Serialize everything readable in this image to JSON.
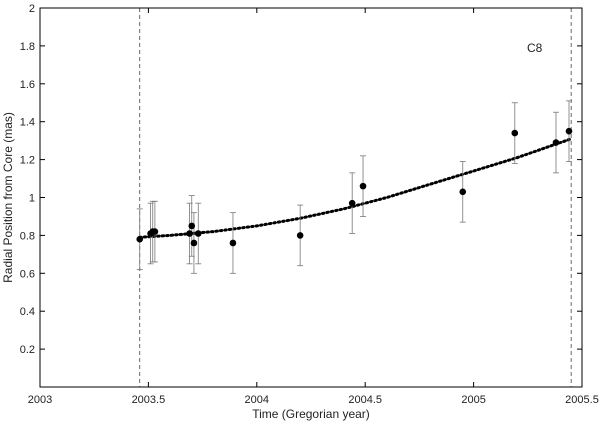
{
  "chart_data": {
    "type": "scatter",
    "title": "",
    "xlabel": "Time (Gregorian year)",
    "ylabel": "Radial Position from Core (mas)",
    "annotation": "C8",
    "xlim": [
      2003,
      2005.5
    ],
    "ylim": [
      0,
      2
    ],
    "x_ticks": [
      2003,
      2003.5,
      2004,
      2004.5,
      2005,
      2005.5
    ],
    "x_tick_labels": [
      "2003",
      "2003.5",
      "2004",
      "2004.5",
      "2005",
      "2005.5"
    ],
    "y_ticks": [
      0.2,
      0.4,
      0.6,
      0.8,
      1,
      1.2,
      1.4,
      1.6,
      1.8,
      2
    ],
    "y_tick_labels": [
      "0.2",
      "0.4",
      "0.6",
      "0.8",
      "1",
      "1.2",
      "1.4",
      "1.6",
      "1.8",
      "2"
    ],
    "grid": false,
    "vertical_lines": [
      2003.46,
      2005.45
    ],
    "points": [
      {
        "x": 2003.46,
        "y": 0.78,
        "err": 0.16
      },
      {
        "x": 2003.51,
        "y": 0.81,
        "err": 0.16
      },
      {
        "x": 2003.52,
        "y": 0.82,
        "err": 0.16
      },
      {
        "x": 2003.53,
        "y": 0.82,
        "err": 0.16
      },
      {
        "x": 2003.69,
        "y": 0.81,
        "err": 0.16
      },
      {
        "x": 2003.7,
        "y": 0.85,
        "err": 0.16
      },
      {
        "x": 2003.71,
        "y": 0.76,
        "err": 0.16
      },
      {
        "x": 2003.73,
        "y": 0.81,
        "err": 0.16
      },
      {
        "x": 2003.89,
        "y": 0.76,
        "err": 0.16
      },
      {
        "x": 2004.2,
        "y": 0.8,
        "err": 0.16
      },
      {
        "x": 2004.44,
        "y": 0.97,
        "err": 0.16
      },
      {
        "x": 2004.49,
        "y": 1.06,
        "err": 0.16
      },
      {
        "x": 2004.95,
        "y": 1.03,
        "err": 0.16
      },
      {
        "x": 2005.19,
        "y": 1.34,
        "err": 0.16
      },
      {
        "x": 2005.38,
        "y": 1.29,
        "err": 0.16
      },
      {
        "x": 2005.44,
        "y": 1.35,
        "err": 0.16
      }
    ],
    "fit_curve": {
      "style": "dotted",
      "x": [
        2003.46,
        2003.6,
        2003.8,
        2004.0,
        2004.2,
        2004.4,
        2004.6,
        2004.8,
        2005.0,
        2005.2,
        2005.45
      ],
      "y": [
        0.79,
        0.8,
        0.82,
        0.85,
        0.89,
        0.94,
        1.0,
        1.07,
        1.14,
        1.21,
        1.31
      ]
    }
  }
}
